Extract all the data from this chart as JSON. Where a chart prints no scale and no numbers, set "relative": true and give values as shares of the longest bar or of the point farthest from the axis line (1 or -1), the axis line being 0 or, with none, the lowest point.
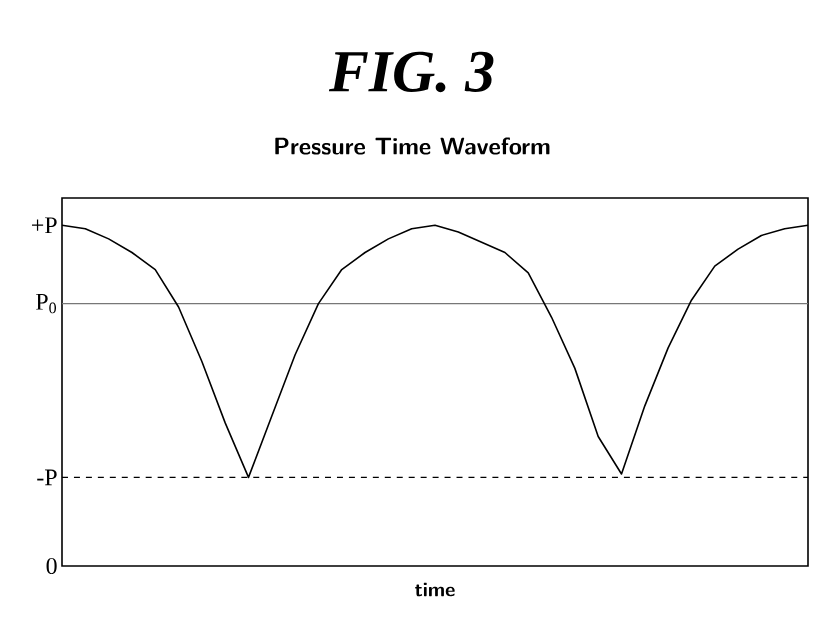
{
  "chart_data": {
    "type": "line",
    "title": "FIG. 3",
    "subtitle": "Pressure Time Waveform",
    "xlabel": "time",
    "relative": true,
    "categories": [
      null,
      null,
      null,
      null,
      null,
      null,
      null,
      null,
      null,
      null,
      null,
      null,
      null,
      null,
      null,
      null,
      null,
      null,
      null,
      null,
      null,
      null,
      null,
      null,
      null,
      null,
      null,
      null,
      null,
      null,
      null,
      null,
      null
    ],
    "series": [
      {
        "color": "#000000",
        "values": [
          1,
          0.99,
          0.96,
          0.92,
          0.87,
          0.76,
          0.6,
          0.42,
          0.26,
          0.44,
          0.62,
          0.77,
          0.87,
          0.92,
          0.96,
          0.99,
          1,
          0.98,
          0.95,
          0.92,
          0.86,
          0.73,
          0.58,
          0.38,
          0.27,
          0.47,
          0.64,
          0.78,
          0.88,
          0.93,
          0.97,
          0.99,
          1
        ]
      }
    ],
    "grid": false,
    "marker": "none",
    "line_style": "solid",
    "annotations": [
      "+P",
      "0"
    ],
    "ref_lines": [
      {
        "axis": "y",
        "value": 0.77,
        "label": "P$_{0}$",
        "color": "#777777",
        "line_style": "solid"
      },
      {
        "axis": "y",
        "value": 0.26,
        "label": "-P",
        "color": "#000000",
        "line_style": "dashed"
      }
    ]
  }
}
